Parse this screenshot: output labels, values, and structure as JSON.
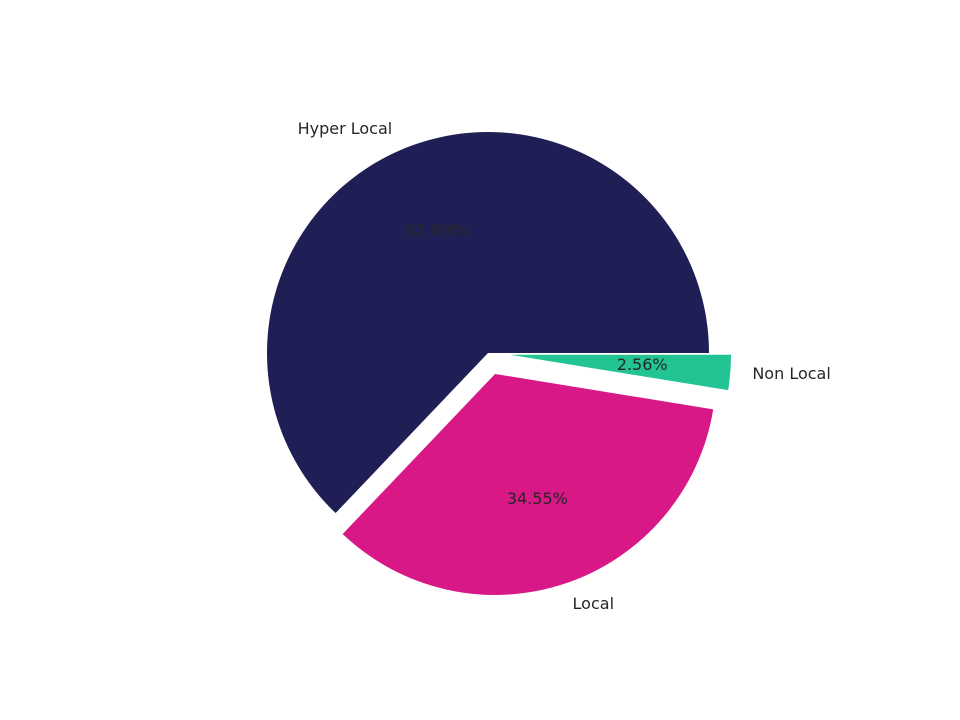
{
  "chart_data": {
    "type": "pie",
    "categories": [
      "Hyper Local",
      "Local",
      "Non Local"
    ],
    "values": [
      62.89,
      34.55,
      2.56
    ],
    "value_labels": [
      "62.89%",
      "34.55%",
      "2.56%"
    ],
    "colors": [
      "#1f1f55",
      "#d81887",
      "#22c493"
    ],
    "explode": [
      0,
      0.1,
      0.1
    ]
  }
}
